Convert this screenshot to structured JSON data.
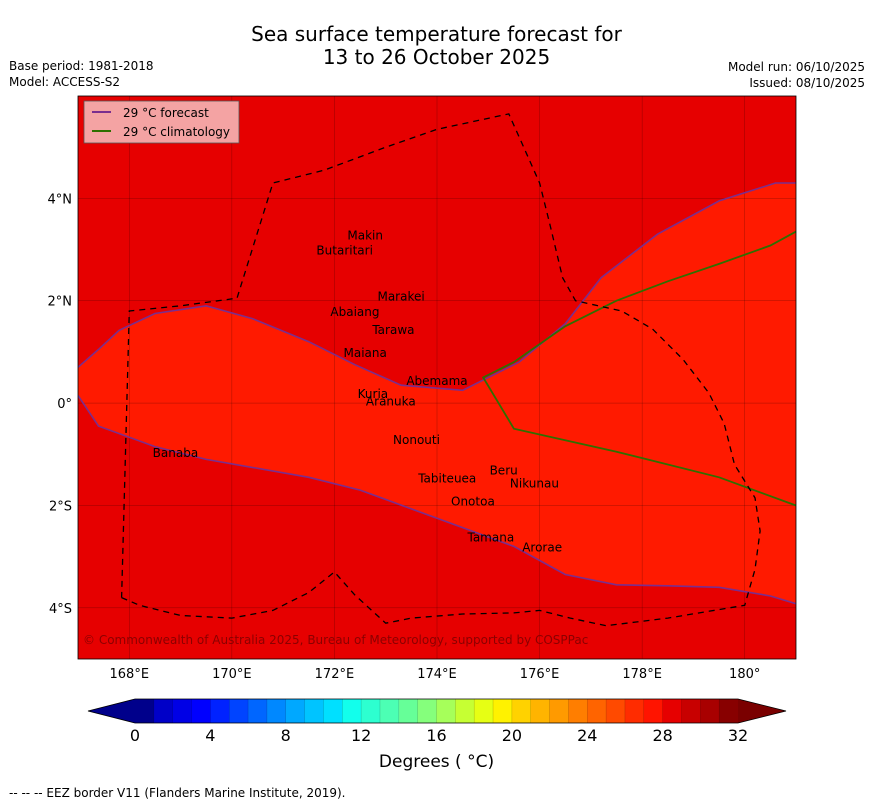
{
  "title": {
    "line1": "Sea surface temperature forecast for",
    "line2": "13 to 26 October 2025"
  },
  "meta_left": {
    "base_period": "Base period: 1981-2018",
    "model": "Model: ACCESS-S2"
  },
  "meta_right": {
    "model_run": "Model run: 06/10/2025",
    "issued": "Issued: 08/10/2025"
  },
  "legend": {
    "forecast_label": "29 °C  forecast",
    "climatology_label": "29 °C  climatology",
    "forecast_color": "#7a2e8e",
    "climatology_color": "#2f6f00"
  },
  "map": {
    "lon_range": [
      167.0,
      181.0
    ],
    "lat_range": [
      -5.0,
      6.0
    ],
    "lon_ticks": [
      {
        "value": 168,
        "label": "168°E"
      },
      {
        "value": 170,
        "label": "170°E"
      },
      {
        "value": 172,
        "label": "172°E"
      },
      {
        "value": 174,
        "label": "174°E"
      },
      {
        "value": 176,
        "label": "176°E"
      },
      {
        "value": 178,
        "label": "178°E"
      },
      {
        "value": 180,
        "label": "180°"
      }
    ],
    "lat_ticks": [
      {
        "value": 4,
        "label": "4°N"
      },
      {
        "value": 2,
        "label": "2°N"
      },
      {
        "value": 0,
        "label": "0°"
      },
      {
        "value": -2,
        "label": "2°S"
      },
      {
        "value": -4,
        "label": "4°S"
      }
    ],
    "colors": {
      "warm_fill": "#e60000",
      "cool_fill": "#ff1a00",
      "grid": "#000000",
      "eez": "#000000"
    },
    "places": [
      {
        "name": "Makin",
        "lon": 172.6,
        "lat": 3.2
      },
      {
        "name": "Butaritari",
        "lon": 172.2,
        "lat": 2.9
      },
      {
        "name": "Marakei",
        "lon": 173.3,
        "lat": 2.0
      },
      {
        "name": "Abaiang",
        "lon": 172.4,
        "lat": 1.7
      },
      {
        "name": "Tarawa",
        "lon": 173.15,
        "lat": 1.35
      },
      {
        "name": "Maiana",
        "lon": 172.6,
        "lat": 0.9
      },
      {
        "name": "Abemama",
        "lon": 174.0,
        "lat": 0.35
      },
      {
        "name": "Kuria",
        "lon": 172.75,
        "lat": 0.1
      },
      {
        "name": "Aranuka",
        "lon": 173.1,
        "lat": -0.05
      },
      {
        "name": "Nonouti",
        "lon": 173.6,
        "lat": -0.8
      },
      {
        "name": "Banaba",
        "lon": 168.9,
        "lat": -1.05
      },
      {
        "name": "Beru",
        "lon": 175.3,
        "lat": -1.4
      },
      {
        "name": "Tabiteuea",
        "lon": 174.2,
        "lat": -1.55
      },
      {
        "name": "Nikunau",
        "lon": 175.9,
        "lat": -1.65
      },
      {
        "name": "Onotoa",
        "lon": 174.7,
        "lat": -2.0
      },
      {
        "name": "Tamana",
        "lon": 175.05,
        "lat": -2.7
      },
      {
        "name": "Arorae",
        "lon": 176.05,
        "lat": -2.9
      }
    ],
    "forecast_isotherm": {
      "north": [
        [
          167.0,
          0.7
        ],
        [
          167.4,
          1.05
        ],
        [
          167.8,
          1.42
        ],
        [
          168.5,
          1.75
        ],
        [
          169.5,
          1.9
        ],
        [
          170.4,
          1.65
        ],
        [
          171.5,
          1.2
        ],
        [
          172.4,
          0.75
        ],
        [
          173.3,
          0.35
        ],
        [
          174.5,
          0.25
        ],
        [
          175.6,
          0.8
        ],
        [
          176.5,
          1.55
        ],
        [
          177.2,
          2.45
        ],
        [
          178.3,
          3.3
        ],
        [
          179.5,
          3.95
        ],
        [
          180.6,
          4.3
        ],
        [
          181.0,
          4.3
        ]
      ],
      "south": [
        [
          167.0,
          0.15
        ],
        [
          167.4,
          -0.45
        ],
        [
          168.5,
          -0.85
        ],
        [
          169.5,
          -1.1
        ],
        [
          171.5,
          -1.45
        ],
        [
          172.5,
          -1.7
        ],
        [
          174.0,
          -2.25
        ],
        [
          175.5,
          -2.8
        ],
        [
          176.5,
          -3.35
        ],
        [
          177.5,
          -3.55
        ],
        [
          178.5,
          -3.57
        ],
        [
          179.5,
          -3.6
        ],
        [
          180.5,
          -3.77
        ],
        [
          181.0,
          -3.92
        ]
      ]
    },
    "climatology_isotherm": [
      [
        181.0,
        3.35
      ],
      [
        180.5,
        3.08
      ],
      [
        179.5,
        2.72
      ],
      [
        178.5,
        2.38
      ],
      [
        177.5,
        2.0
      ],
      [
        176.5,
        1.5
      ],
      [
        175.5,
        0.8
      ],
      [
        174.9,
        0.5
      ],
      [
        175.5,
        -0.5
      ],
      [
        177.5,
        -0.95
      ],
      [
        179.5,
        -1.45
      ],
      [
        181.0,
        -2.0
      ]
    ],
    "eez_border": [
      [
        [
          167.85,
          -3.8
        ],
        [
          168.2,
          -3.95
        ],
        [
          169.0,
          -4.15
        ],
        [
          170.0,
          -4.2
        ],
        [
          170.8,
          -4.05
        ],
        [
          171.5,
          -3.7
        ],
        [
          172.0,
          -3.3
        ],
        [
          172.4,
          -3.75
        ],
        [
          173.0,
          -4.3
        ],
        [
          173.5,
          -4.2
        ],
        [
          174.5,
          -4.12
        ],
        [
          175.5,
          -4.1
        ],
        [
          176.0,
          -4.05
        ],
        [
          176.6,
          -4.2
        ],
        [
          177.3,
          -4.35
        ],
        [
          178.5,
          -4.2
        ],
        [
          180.0,
          -3.95
        ],
        [
          180.2,
          -3.25
        ],
        [
          180.3,
          -2.5
        ],
        [
          180.2,
          -1.85
        ],
        [
          179.8,
          -1.2
        ],
        [
          179.6,
          -0.4
        ],
        [
          179.3,
          0.2
        ],
        [
          178.8,
          0.85
        ],
        [
          178.2,
          1.45
        ],
        [
          177.6,
          1.8
        ],
        [
          176.7,
          2.0
        ],
        [
          176.45,
          2.45
        ],
        [
          176.2,
          3.5
        ],
        [
          176.0,
          4.3
        ],
        [
          175.6,
          5.2
        ],
        [
          175.4,
          5.65
        ],
        [
          174.0,
          5.35
        ],
        [
          173.0,
          5.0
        ],
        [
          171.8,
          4.55
        ],
        [
          170.8,
          4.3
        ],
        [
          170.1,
          2.05
        ],
        [
          169.0,
          1.9
        ],
        [
          168.0,
          1.8
        ],
        [
          167.85,
          -3.8
        ]
      ]
    ],
    "copyright": "© Commonwealth of Australia 2025, Bureau of Meteorology, supported by COSPPac"
  },
  "colorbar": {
    "min": 0,
    "max": 32,
    "step": 1,
    "ticks": [
      0,
      4,
      8,
      12,
      16,
      20,
      24,
      28,
      32
    ],
    "colors": [
      "#00008b",
      "#0000c8",
      "#0000e6",
      "#0000ff",
      "#0022ff",
      "#0044ff",
      "#0066ff",
      "#0088ff",
      "#00a8ff",
      "#00c4ff",
      "#00e0ff",
      "#12ffec",
      "#2dffd0",
      "#4cffb4",
      "#66ff98",
      "#85ff7c",
      "#a6ff5a",
      "#c6ff33",
      "#e6ff14",
      "#fff200",
      "#ffd200",
      "#ffb400",
      "#ff9a00",
      "#ff7e00",
      "#ff6400",
      "#ff4a00",
      "#ff2c00",
      "#ff1400",
      "#e60000",
      "#c80000",
      "#a80000",
      "#880000"
    ],
    "under_color": "#00008b",
    "over_color": "#7a0000",
    "label": "Degrees ( °C)"
  },
  "footer": "--  --  -- EEZ border V11 (Flanders Marine Institute, 2019)."
}
